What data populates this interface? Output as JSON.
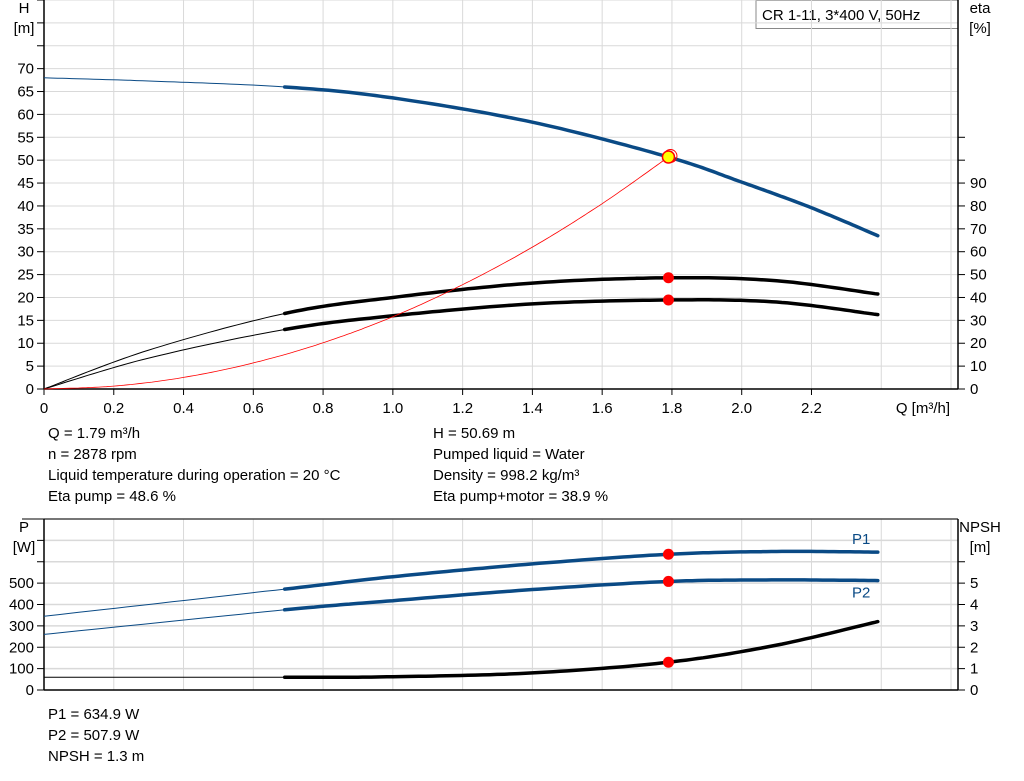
{
  "title_box": "CR 1-11, 3*400 V, 50Hz",
  "colors": {
    "blue": "#0a4a85",
    "black": "#000000",
    "red": "#ff0000",
    "yellow": "#ffff00",
    "grid": "#d9d9d9"
  },
  "chart_data": [
    {
      "type": "line",
      "xlabel": "Q [m³/h]",
      "ylabel": "H\n[m]",
      "ylabel_lines": [
        "H",
        "[m]"
      ],
      "y2label_lines": [
        "eta",
        "[%]"
      ],
      "x_ticks": [
        "0",
        "0.2",
        "0.4",
        "0.6",
        "0.8",
        "1.0",
        "1.2",
        "1.4",
        "1.6",
        "1.8",
        "2.0",
        "2.2"
      ],
      "y_ticks": [
        "0",
        "5",
        "10",
        "15",
        "20",
        "25",
        "30",
        "35",
        "40",
        "45",
        "50",
        "55",
        "60",
        "65",
        "70"
      ],
      "y2_ticks": [
        "0",
        "10",
        "20",
        "30",
        "40",
        "50",
        "60",
        "70",
        "80",
        "90"
      ],
      "xlim": [
        0,
        2.62
      ],
      "ylim": [
        0,
        85
      ],
      "y2lim": [
        0,
        170
      ],
      "grid": true,
      "series": [
        {
          "key": "H",
          "axis": "left",
          "color": "#0a4a85",
          "thick_from": 0.69,
          "x": [
            0,
            0.3,
            0.69,
            1.0,
            1.4,
            1.79,
            2.0,
            2.2,
            2.39
          ],
          "y": [
            68,
            67.3,
            66,
            63.6,
            58.3,
            50.69,
            45.2,
            39.6,
            33.5
          ]
        },
        {
          "key": "eta_pump",
          "axis": "right",
          "color": "#000000",
          "thick_from": 0.69,
          "x": [
            0,
            0.3,
            0.69,
            1.0,
            1.4,
            1.79,
            2.1,
            2.39
          ],
          "y": [
            0,
            17,
            33,
            40,
            46.3,
            48.6,
            47.3,
            41.5
          ]
        },
        {
          "key": "eta_pump_motor",
          "axis": "right",
          "color": "#000000",
          "thick_from": 0.69,
          "x": [
            0,
            0.3,
            0.69,
            1.0,
            1.4,
            1.79,
            2.1,
            2.39
          ],
          "y": [
            0,
            13.5,
            26,
            32,
            37.2,
            38.9,
            38,
            32.5
          ]
        },
        {
          "key": "system_curve",
          "axis": "left",
          "color": "#ff0000",
          "thin": true,
          "x": [
            0,
            0.2,
            0.4,
            0.6,
            0.8,
            1.0,
            1.2,
            1.4,
            1.6,
            1.79
          ],
          "y": [
            0,
            0.63,
            2.53,
            5.7,
            10.1,
            15.8,
            22.8,
            31,
            40.5,
            50.69
          ]
        }
      ],
      "duty_points": [
        {
          "x": 1.79,
          "y": 50.69,
          "axis": "left",
          "style": "yellow"
        },
        {
          "x": 1.79,
          "y": 48.6,
          "axis": "right"
        },
        {
          "x": 1.79,
          "y": 38.9,
          "axis": "right"
        }
      ]
    },
    {
      "type": "line",
      "ylabel_lines": [
        "P",
        "[W]"
      ],
      "y2label_lines": [
        "NPSH",
        "[m]"
      ],
      "y_ticks": [
        "0",
        "100",
        "200",
        "300",
        "400",
        "500"
      ],
      "y2_ticks": [
        "0",
        "1",
        "2",
        "3",
        "4",
        "5"
      ],
      "xlim": [
        0,
        2.62
      ],
      "ylim": [
        0,
        800
      ],
      "y2lim": [
        0,
        8
      ],
      "grid": true,
      "series": [
        {
          "key": "P1",
          "name": "P1",
          "axis": "left",
          "color": "#0a4a85",
          "thick_from": 0.69,
          "x": [
            0,
            0.69,
            1.0,
            1.4,
            1.79,
            2.1,
            2.39
          ],
          "y": [
            345,
            472,
            530,
            590,
            634.9,
            648,
            645
          ]
        },
        {
          "key": "P2",
          "name": "P2",
          "axis": "left",
          "color": "#0a4a85",
          "thick_from": 0.69,
          "x": [
            0,
            0.69,
            1.0,
            1.4,
            1.79,
            2.1,
            2.39
          ],
          "y": [
            260,
            375,
            418,
            470,
            507.9,
            515,
            512
          ]
        },
        {
          "key": "NPSH",
          "axis": "right",
          "color": "#000000",
          "thick_from": 0.69,
          "x": [
            0,
            0.69,
            1.0,
            1.4,
            1.79,
            2.1,
            2.39
          ],
          "y": [
            0.6,
            0.6,
            0.62,
            0.8,
            1.3,
            2.1,
            3.2
          ]
        }
      ],
      "duty_points": [
        {
          "x": 1.79,
          "y": 634.9,
          "axis": "left"
        },
        {
          "x": 1.79,
          "y": 507.9,
          "axis": "left"
        },
        {
          "x": 1.79,
          "y": 1.3,
          "axis": "right"
        }
      ]
    }
  ],
  "info_left": [
    "Q = 1.79 m³/h",
    "n = 2878 rpm",
    "Liquid temperature during operation = 20 °C",
    "Eta pump = 48.6 %"
  ],
  "info_right": [
    "H = 50.69 m",
    "Pumped liquid = Water",
    "Density = 998.2 kg/m³",
    "Eta pump+motor = 38.9 %"
  ],
  "info_bottom": [
    "P1 = 634.9 W",
    "P2 = 507.9 W",
    "NPSH = 1.3 m"
  ]
}
